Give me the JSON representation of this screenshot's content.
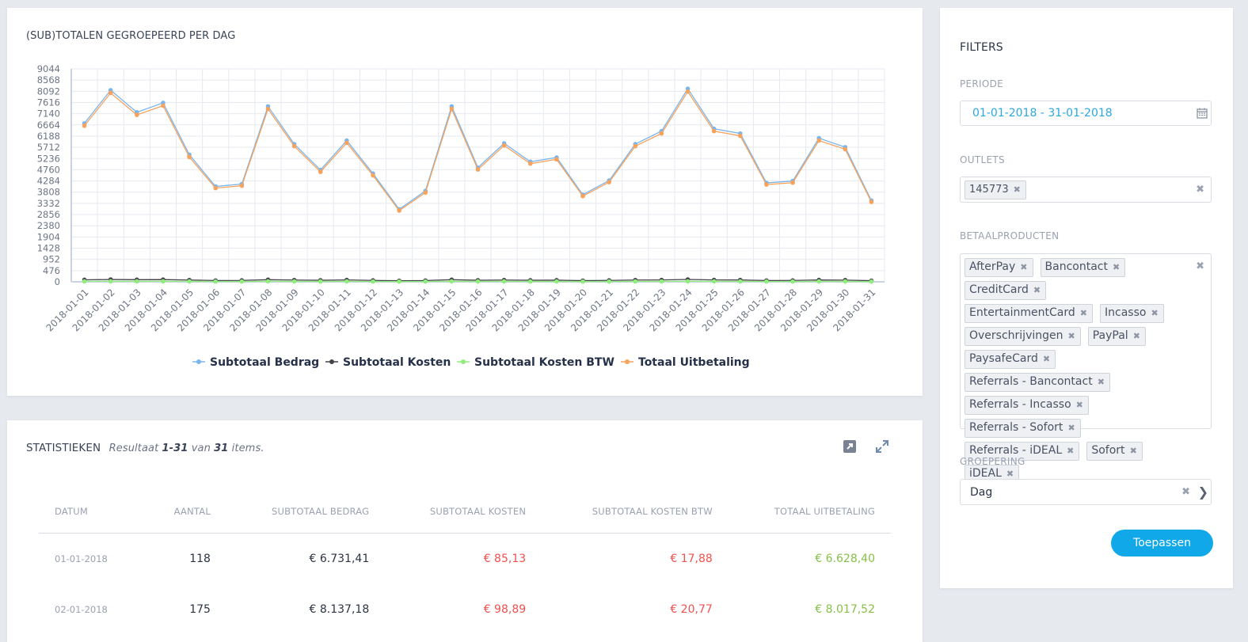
{
  "chart_card": {
    "title": "(SUB)TOTALEN GEGROEPEERD PER DAG"
  },
  "chart_data": {
    "type": "line",
    "x": [
      "2018-01-01",
      "2018-01-02",
      "2018-01-03",
      "2018-01-04",
      "2018-01-05",
      "2018-01-06",
      "2018-01-07",
      "2018-01-08",
      "2018-01-09",
      "2018-01-10",
      "2018-01-11",
      "2018-01-12",
      "2018-01-13",
      "2018-01-14",
      "2018-01-15",
      "2018-01-16",
      "2018-01-17",
      "2018-01-18",
      "2018-01-19",
      "2018-01-20",
      "2018-01-21",
      "2018-01-22",
      "2018-01-23",
      "2018-01-24",
      "2018-01-25",
      "2018-01-26",
      "2018-01-27",
      "2018-01-28",
      "2018-01-29",
      "2018-01-30",
      "2018-01-31"
    ],
    "yticks": [
      0,
      476,
      952,
      1428,
      1904,
      2380,
      2856,
      3332,
      3808,
      4284,
      4760,
      5236,
      5712,
      6188,
      6664,
      7140,
      7616,
      8092,
      8568,
      9044
    ],
    "ylim": [
      0,
      9044
    ],
    "grid": true,
    "legend_position": "bottom",
    "series": [
      {
        "name": "Subtotaal Bedrag",
        "color": "#7cb5ec",
        "values": [
          6731,
          8137,
          7200,
          7600,
          5400,
          4050,
          4150,
          7450,
          5850,
          4750,
          6000,
          4600,
          3080,
          3860,
          7450,
          4850,
          5880,
          5100,
          5280,
          3700,
          4300,
          5850,
          6400,
          8200,
          6500,
          6300,
          4200,
          4280,
          6100,
          5720,
          3450
        ]
      },
      {
        "name": "Subtotaal Kosten",
        "color": "#434348",
        "values": [
          85,
          99,
          90,
          95,
          75,
          55,
          60,
          90,
          75,
          65,
          80,
          60,
          45,
          55,
          90,
          65,
          75,
          65,
          70,
          50,
          60,
          75,
          80,
          100,
          80,
          78,
          55,
          58,
          78,
          72,
          48
        ]
      },
      {
        "name": "Subtotaal Kosten BTW",
        "color": "#90ed7d",
        "values": [
          18,
          21,
          19,
          20,
          16,
          12,
          13,
          19,
          16,
          14,
          17,
          13,
          10,
          12,
          19,
          14,
          16,
          14,
          15,
          11,
          13,
          16,
          17,
          21,
          17,
          16,
          12,
          12,
          16,
          15,
          10
        ]
      },
      {
        "name": "Totaal Uitbetaling",
        "color": "#f7a35c",
        "values": [
          6628,
          8018,
          7090,
          7480,
          5300,
          3980,
          4080,
          7340,
          5760,
          4670,
          5900,
          4520,
          3025,
          3790,
          7340,
          4770,
          5790,
          5020,
          5200,
          3640,
          4230,
          5760,
          6300,
          8080,
          6400,
          6200,
          4130,
          4210,
          6000,
          5630,
          3390
        ]
      }
    ]
  },
  "stats": {
    "title": "STATISTIEKEN",
    "summary_prefix": "Resultaat",
    "summary_range": "1-31",
    "summary_mid": "van",
    "summary_total": "31",
    "summary_suffix": "items.",
    "columns": [
      "DATUM",
      "AANTAL",
      "SUBTOTAAL BEDRAG",
      "SUBTOTAAL KOSTEN",
      "SUBTOTAAL KOSTEN BTW",
      "TOTAAL UITBETALING"
    ],
    "rows": [
      {
        "datum": "01-01-2018",
        "aantal": "118",
        "bedrag": "€ 6.731,41",
        "kosten": "€ 85,13",
        "btw": "€ 17,88",
        "uitbetaling": "€ 6.628,40"
      },
      {
        "datum": "02-01-2018",
        "aantal": "175",
        "bedrag": "€ 8.137,18",
        "kosten": "€ 98,89",
        "btw": "€ 20,77",
        "uitbetaling": "€ 8.017,52"
      }
    ],
    "colors": {
      "negative": "#f0524f",
      "positive": "#86c14a"
    }
  },
  "filters": {
    "title": "FILTERS",
    "periode_label": "PERIODE",
    "periode_value": "01-01-2018 - 31-01-2018",
    "outlets_label": "OUTLETS",
    "outlets": [
      "145773"
    ],
    "betaal_label": "BETAALPRODUCTEN",
    "betaalproducten": [
      "AfterPay",
      "Bancontact",
      "CreditCard",
      "EntertainmentCard",
      "Incasso",
      "Overschrijvingen",
      "PayPal",
      "PaysafeCard",
      "Referrals - Bancontact",
      "Referrals - Incasso",
      "Referrals - Sofort",
      "Referrals - iDEAL",
      "Sofort",
      "iDEAL"
    ],
    "groep_label": "GROEPERING",
    "groep_value": "Dag",
    "apply_label": "Toepassen",
    "accent": "#10a8e8"
  }
}
